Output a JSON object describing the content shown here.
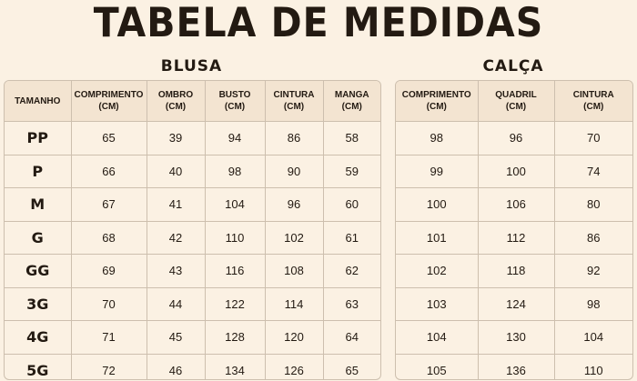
{
  "title": "TABELA DE MEDIDAS",
  "blusa": {
    "title": "BLUSA",
    "headers": [
      {
        "line1": "TAMANHO",
        "line2": ""
      },
      {
        "line1": "COMPRIMENTO",
        "line2": "(CM)"
      },
      {
        "line1": "OMBRO",
        "line2": "(CM)"
      },
      {
        "line1": "BUSTO",
        "line2": "(CM)"
      },
      {
        "line1": "CINTURA",
        "line2": "(CM)"
      },
      {
        "line1": "MANGA",
        "line2": "(CM)"
      }
    ],
    "rows": [
      [
        "PP",
        "65",
        "39",
        "94",
        "86",
        "58"
      ],
      [
        "P",
        "66",
        "40",
        "98",
        "90",
        "59"
      ],
      [
        "M",
        "67",
        "41",
        "104",
        "96",
        "60"
      ],
      [
        "G",
        "68",
        "42",
        "110",
        "102",
        "61"
      ],
      [
        "GG",
        "69",
        "43",
        "116",
        "108",
        "62"
      ],
      [
        "3G",
        "70",
        "44",
        "122",
        "114",
        "63"
      ],
      [
        "4G",
        "71",
        "45",
        "128",
        "120",
        "64"
      ],
      [
        "5G",
        "72",
        "46",
        "134",
        "126",
        "65"
      ]
    ]
  },
  "calca": {
    "title": "CALÇA",
    "headers": [
      {
        "line1": "COMPRIMENTO",
        "line2": "(CM)"
      },
      {
        "line1": "QUADRIL",
        "line2": "(CM)"
      },
      {
        "line1": "CINTURA",
        "line2": "(CM)"
      }
    ],
    "rows": [
      [
        "98",
        "96",
        "70"
      ],
      [
        "99",
        "100",
        "74"
      ],
      [
        "100",
        "106",
        "80"
      ],
      [
        "101",
        "112",
        "86"
      ],
      [
        "102",
        "118",
        "92"
      ],
      [
        "103",
        "124",
        "98"
      ],
      [
        "104",
        "130",
        "104"
      ],
      [
        "105",
        "136",
        "110"
      ]
    ]
  },
  "colors": {
    "background": "#fbf1e3",
    "header_fill": "#f3e4d1",
    "border": "#cdbfae",
    "text": "#231a12"
  }
}
